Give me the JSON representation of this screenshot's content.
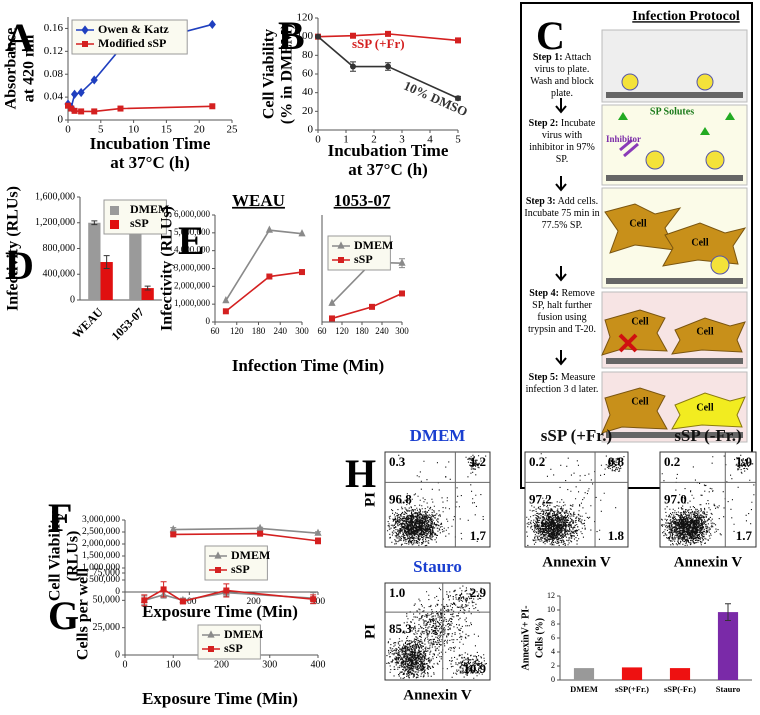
{
  "panel_labels": [
    "A",
    "B",
    "C",
    "D",
    "E",
    "F",
    "G",
    "H"
  ],
  "chart_data": [
    {
      "type": "line",
      "y_label": [
        "Absorbance",
        "at 420 nm"
      ],
      "x_label": [
        "Incubation Time",
        "at 37°C (h)"
      ],
      "xlim": [
        0,
        25
      ],
      "xticks": [
        0,
        5,
        10,
        15,
        20,
        25
      ],
      "ylim": [
        0,
        0.18
      ],
      "yticks": [
        0,
        0.04,
        0.08,
        0.12,
        0.16
      ],
      "legend": "upper left",
      "series": [
        {
          "name": "Owen & Katz",
          "color": "#1f3fbf",
          "marker": "diamond",
          "x": [
            0,
            0.5,
            1,
            2,
            4,
            8,
            22
          ],
          "values": [
            0.028,
            0.022,
            0.045,
            0.048,
            0.07,
            0.125,
            0.167
          ]
        },
        {
          "name": "Modified sSP",
          "color": "#d42020",
          "marker": "square",
          "x": [
            0,
            0.5,
            1,
            2,
            4,
            8,
            22
          ],
          "values": [
            0.025,
            0.02,
            0.016,
            0.015,
            0.015,
            0.02,
            0.024
          ]
        }
      ]
    },
    {
      "type": "line",
      "y_label": [
        "Cell Viability",
        "(% in DMEM)"
      ],
      "x_label": [
        "Incubation Time",
        "at 37°C (h)"
      ],
      "xlim": [
        0,
        5
      ],
      "xticks": [
        0,
        1,
        2,
        3,
        4,
        5
      ],
      "ylim": [
        0,
        120
      ],
      "yticks": [
        0,
        20,
        40,
        60,
        80,
        100,
        120
      ],
      "legend": "inline",
      "series": [
        {
          "name": "sSP (+Fr)",
          "color": "#d42020",
          "marker": "square",
          "x": [
            0,
            1.25,
            2.5,
            5
          ],
          "values": [
            100,
            101,
            103,
            96
          ]
        },
        {
          "name": "10% DMSO",
          "color": "#333333",
          "marker": "circle",
          "x": [
            0,
            1.25,
            2.5,
            5
          ],
          "values": [
            100,
            68,
            68,
            34
          ],
          "errors": [
            null,
            5,
            4,
            2
          ]
        }
      ]
    },
    {
      "type": "bar",
      "y_label": [
        "Infectivity (RLUs)"
      ],
      "categories": [
        "WEAU",
        "1053-07"
      ],
      "ylim": [
        0,
        1600000
      ],
      "yticks": [
        0,
        {
          "value": 400000,
          "label": "400,000"
        },
        {
          "value": 800000,
          "label": "800,000"
        },
        {
          "value": 1200000,
          "label": "1,200,000"
        },
        {
          "value": 1600000,
          "label": "1,600,000"
        }
      ],
      "legend": "upper right",
      "series": [
        {
          "name": "DMEM",
          "color": "#9a9a9a",
          "values": [
            1200000,
            1090000
          ],
          "errors": [
            30000,
            15000
          ]
        },
        {
          "name": "sSP",
          "color": "#e01010",
          "values": [
            590000,
            185000
          ],
          "errors": [
            100000,
            30000
          ]
        }
      ]
    },
    {
      "type": "line",
      "title": "WEAU",
      "y_label": [
        "Infectivity (RLUs)"
      ],
      "x_label": [
        "Infection Time (Min)"
      ],
      "xlim": [
        60,
        300
      ],
      "xticks": [
        60,
        120,
        180,
        240,
        300
      ],
      "ylim": [
        0,
        6000000
      ],
      "yticks": [
        0,
        {
          "value": 1000000,
          "label": "1,000,000"
        },
        {
          "value": 2000000,
          "label": "2,000,000"
        },
        {
          "value": 3000000,
          "label": "3,000,000"
        },
        {
          "value": 4000000,
          "label": "4,000,000"
        },
        {
          "value": 5000000,
          "label": "5,000,000"
        },
        {
          "value": 6000000,
          "label": "6,000,000"
        }
      ],
      "legend": "none",
      "series": [
        {
          "name": "DMEM",
          "color": "#8a8a8a",
          "marker": "triangle",
          "x": [
            90,
            210,
            300
          ],
          "values": [
            1200000,
            5150000,
            4950000
          ]
        },
        {
          "name": "sSP",
          "color": "#d42020",
          "marker": "square",
          "x": [
            90,
            210,
            300
          ],
          "values": [
            600000,
            2550000,
            2800000
          ]
        }
      ]
    },
    {
      "type": "line",
      "title": "1053-07",
      "xlim": [
        60,
        300
      ],
      "xticks": [
        60,
        120,
        180,
        240,
        300
      ],
      "ylim": [
        0,
        6000000
      ],
      "legend": "upper left",
      "series": [
        {
          "name": "DMEM",
          "color": "#8a8a8a",
          "marker": "triangle",
          "x": [
            90,
            210,
            300
          ],
          "values": [
            1050000,
            3350000,
            3300000
          ],
          "errors": [
            null,
            null,
            250000
          ]
        },
        {
          "name": "sSP",
          "color": "#d42020",
          "marker": "square",
          "x": [
            90,
            210,
            300
          ],
          "values": [
            200000,
            850000,
            1600000
          ]
        }
      ]
    },
    {
      "type": "line",
      "y_label": [
        "Cell Viability",
        "(RLUs)"
      ],
      "x_label": [
        "Exposure Time (Min)"
      ],
      "xlim": [
        0,
        300
      ],
      "xticks": [
        100,
        200,
        300
      ],
      "ylim": [
        0,
        3000000
      ],
      "yticks": [
        0,
        {
          "value": 500000,
          "label": "500,000"
        },
        {
          "value": 1000000,
          "label": "1,000,000"
        },
        {
          "value": 1500000,
          "label": "1,500,000"
        },
        {
          "value": 2000000,
          "label": "2,000,000"
        },
        {
          "value": 2500000,
          "label": "2,500,000"
        },
        {
          "value": 3000000,
          "label": "3,000,000"
        }
      ],
      "legend": "lower center",
      "series": [
        {
          "name": "DMEM",
          "color": "#8a8a8a",
          "marker": "triangle",
          "x": [
            75,
            210,
            300
          ],
          "values": [
            2600000,
            2650000,
            2450000
          ],
          "errors": [
            80000,
            50000,
            60000
          ]
        },
        {
          "name": "sSP",
          "color": "#d42020",
          "marker": "square",
          "x": [
            75,
            210,
            300
          ],
          "values": [
            2400000,
            2430000,
            2130000
          ],
          "errors": [
            60000,
            50000,
            120000
          ]
        }
      ]
    },
    {
      "type": "line",
      "y_label": [
        "Cells per well"
      ],
      "x_label": [
        "Exposure Time (Min)"
      ],
      "xlim": [
        0,
        400
      ],
      "xticks": [
        0,
        100,
        200,
        300,
        400
      ],
      "ylim": [
        0,
        75000
      ],
      "yticks": [
        0,
        {
          "value": 25000,
          "label": "25,000"
        },
        {
          "value": 50000,
          "label": "50,000"
        },
        {
          "value": 75000,
          "label": "75,000"
        }
      ],
      "legend": "lower center",
      "series": [
        {
          "name": "DMEM",
          "color": "#8a8a8a",
          "marker": "triangle",
          "x": [
            40,
            80,
            120,
            210,
            390
          ],
          "values": [
            50000,
            55000,
            50000,
            57000,
            52000
          ],
          "errors": [
            4000,
            3000,
            2000,
            3000,
            5000
          ]
        },
        {
          "name": "sSP",
          "color": "#d42020",
          "marker": "square",
          "x": [
            40,
            80,
            120,
            210,
            390
          ],
          "values": [
            50000,
            60000,
            49000,
            59000,
            51000
          ],
          "errors": [
            5000,
            7000,
            2000,
            6000,
            4000
          ]
        }
      ]
    },
    {
      "type": "bar",
      "y_label": [
        "AnnexinV+ PI-",
        "Cells (%)"
      ],
      "categories": [
        "DMEM",
        "sSP(+Fr.)",
        "sSP(-Fr.)",
        "Stauro"
      ],
      "ylim": [
        0,
        12
      ],
      "yticks": [
        0,
        2,
        4,
        6,
        8,
        10,
        12
      ],
      "legend": "none",
      "values": [
        1.7,
        1.8,
        1.7,
        9.7
      ],
      "colors": [
        "#999999",
        "#ee1111",
        "#ee1111",
        "#7a2aa8"
      ],
      "errors": [
        null,
        null,
        null,
        1.2
      ]
    }
  ],
  "flow_plots": [
    {
      "title": "DMEM",
      "title_color": "#1a3fd0",
      "y_label": "PI",
      "quadrants": [
        "0.3",
        "1.2",
        "96.8",
        "1.7"
      ]
    },
    {
      "title": "sSP (+Fr.)",
      "title_color": "#111111",
      "x_label": "Annexin V",
      "quadrants": [
        "0.2",
        "0.8",
        "97.2",
        "1.8"
      ]
    },
    {
      "title": "sSP (-Fr.)",
      "title_color": "#111111",
      "x_label": "Annexin V",
      "quadrants": [
        "0.2",
        "1.0",
        "97.0",
        "1.7"
      ]
    },
    {
      "title": "Stauro",
      "title_color": "#1a3fd0",
      "y_label": "PI",
      "x_label": "Annexin V",
      "quadrants": [
        "1.0",
        "2.9",
        "85.3",
        "10.9"
      ]
    }
  ],
  "protocol": {
    "title": "Infection Protocol",
    "steps": [
      {
        "label": "Step 1:",
        "text": "Attach virus to plate. Wash and block plate."
      },
      {
        "label": "Step 2:",
        "text": "Incubate virus with inhibitor in 97% SP."
      },
      {
        "label": "Step 3:",
        "text": "Add cells. Incubate 75 min in 77.5% SP."
      },
      {
        "label": "Step 4:",
        "text": "Remove SP, halt further fusion using trypsin and T-20."
      },
      {
        "label": "Step 5:",
        "text": "Measure infection 3 d later."
      }
    ],
    "labels": {
      "sp_solutes": "SP Solutes",
      "inhibitor": "Inhibitor",
      "cell": "Cell"
    }
  }
}
